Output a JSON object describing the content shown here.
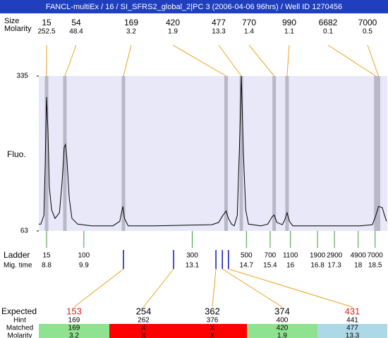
{
  "chart_data": {
    "type": "line",
    "title": "FANCL-multiEx / 16 / SI_SFRS2_global_2|PC 3 (2006-04-06 96hrs) / Well ID 1270456",
    "y_label": "Fluo.",
    "size_label": "Size",
    "molarity_label": "Molarity",
    "color": "#000000",
    "xlim": [
      8.57,
      18.86
    ],
    "ylim": [
      63,
      335
    ],
    "yticks": [
      63,
      335
    ],
    "x": [
      8.57,
      8.63,
      8.72,
      8.76,
      8.8,
      8.84,
      8.88,
      8.95,
      9.05,
      9.18,
      9.26,
      9.32,
      9.36,
      9.4,
      9.47,
      9.55,
      9.72,
      10.13,
      10.76,
      10.96,
      11.05,
      11.1,
      11.21,
      12.01,
      12.85,
      13.68,
      13.88,
      14.0,
      14.1,
      14.17,
      14.26,
      14.34,
      14.43,
      14.49,
      14.55,
      14.61,
      14.68,
      14.76,
      15.13,
      15.33,
      15.46,
      15.52,
      15.6,
      15.76,
      15.83,
      15.9,
      15.97,
      16.07,
      16.58,
      17.43,
      18.05,
      18.42,
      18.52,
      18.6,
      18.71,
      18.78,
      18.84
    ],
    "values": [
      75,
      75,
      90,
      180,
      298,
      240,
      140,
      100,
      85,
      95,
      150,
      210,
      215,
      190,
      120,
      85,
      75,
      72,
      72,
      80,
      106,
      85,
      72,
      72,
      73,
      74,
      78,
      90,
      98,
      85,
      75,
      72,
      90,
      200,
      335,
      200,
      100,
      75,
      72,
      75,
      88,
      91,
      78,
      74,
      82,
      95,
      80,
      72,
      72,
      72,
      72,
      74,
      90,
      106,
      104,
      90,
      80
    ],
    "peaks": [
      {
        "size": 15,
        "molarity": 252.5,
        "time": 8.8
      },
      {
        "size": 54,
        "molarity": 48.4,
        "time": 9.34
      },
      {
        "size": 169,
        "molarity": 3.2,
        "time": 11.07
      },
      {
        "size": 420,
        "molarity": 1.9,
        "time": 14.1
      },
      {
        "size": 477,
        "molarity": 13.3,
        "time": 14.55
      },
      {
        "size": 770,
        "molarity": 1.4,
        "time": 15.52
      },
      {
        "size": 990,
        "molarity": 1.1,
        "time": 15.9
      },
      {
        "size": 6682,
        "molarity": 0.1,
        "time": 18.52
      },
      {
        "size": 7000,
        "molarity": 0.5,
        "time": 18.6
      }
    ],
    "ladder": {
      "label": "Ladder",
      "time_label": "Mig. time",
      "sizes": [
        15,
        100,
        300,
        500,
        700,
        1100,
        1900,
        2900,
        4900,
        7000
      ],
      "times": [
        8.8,
        9.9,
        13.1,
        14.7,
        15.4,
        16,
        16.8,
        17.3,
        18,
        18.5
      ]
    },
    "expected": {
      "labels": [
        "Expected",
        "Hint",
        "Matched",
        "Molarity"
      ],
      "columns": [
        {
          "expected": 153,
          "hint": 169,
          "matched": 169,
          "molarity": 3.2,
          "time": 11.07,
          "color": "#8fe28f",
          "expected_color": "#e02020"
        },
        {
          "expected": 254,
          "hint": 262,
          "matched": "X",
          "molarity": "X",
          "time": 12.55,
          "color": "#ff0000",
          "expected_color": "#000000"
        },
        {
          "expected": 362,
          "hint": 376,
          "matched": "X",
          "molarity": "X",
          "time": 13.8,
          "color": "#ff0000",
          "expected_color": "#000000"
        },
        {
          "expected": 374,
          "hint": 400,
          "matched": 420,
          "molarity": 1.9,
          "time": 13.99,
          "color": "#8fe28f",
          "expected_color": "#000000"
        },
        {
          "expected": 431,
          "hint": 441,
          "matched": 477,
          "molarity": 13.3,
          "time": 14.17,
          "color": "#add8e6",
          "expected_color": "#e02020"
        }
      ]
    }
  }
}
